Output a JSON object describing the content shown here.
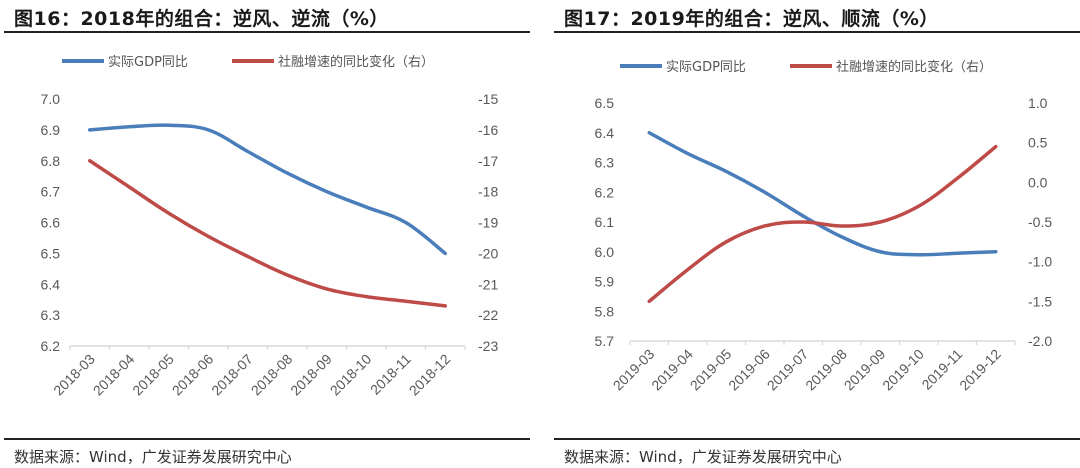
{
  "chart_data": [
    {
      "type": "line",
      "title": "图16：2018年的组合：逆风、逆流（%）",
      "source": "数据来源：Wind，广发证券发展研究中心",
      "categories": [
        "2018-03",
        "2018-04",
        "2018-05",
        "2018-06",
        "2018-07",
        "2018-08",
        "2018-09",
        "2018-10",
        "2018-11",
        "2018-12"
      ],
      "series": [
        {
          "name": "实际GDP同比",
          "axis": "left",
          "color": "#4a7ebb",
          "values": [
            6.9,
            6.91,
            6.915,
            6.9,
            6.83,
            6.76,
            6.7,
            6.65,
            6.6,
            6.5
          ]
        },
        {
          "name": "社融增速的同比变化（右）",
          "axis": "right",
          "color": "#be4b48",
          "values": [
            -17.0,
            -17.85,
            -18.7,
            -19.45,
            -20.1,
            -20.7,
            -21.15,
            -21.4,
            -21.55,
            -21.7
          ]
        }
      ],
      "yleft": {
        "min": 6.2,
        "max": 7.0,
        "ticks": [
          "7.0",
          "6.9",
          "6.8",
          "6.7",
          "6.6",
          "6.5",
          "6.4",
          "6.3",
          "6.2"
        ]
      },
      "yright": {
        "min": -23,
        "max": -15,
        "ticks": [
          "-15",
          "-16",
          "-17",
          "-18",
          "-19",
          "-20",
          "-21",
          "-22",
          "-23"
        ]
      },
      "legend": "top",
      "grid": false
    },
    {
      "type": "line",
      "title": "图17：2019年的组合：逆风、顺流（%）",
      "source": "数据来源：Wind，广发证券发展研究中心",
      "categories": [
        "2019-03",
        "2019-04",
        "2019-05",
        "2019-06",
        "2019-07",
        "2019-08",
        "2019-09",
        "2019-10",
        "2019-11",
        "2019-12"
      ],
      "series": [
        {
          "name": "实际GDP同比",
          "axis": "left",
          "color": "#4a7ebb",
          "values": [
            6.4,
            6.33,
            6.27,
            6.2,
            6.12,
            6.05,
            6.0,
            5.99,
            5.995,
            6.0
          ]
        },
        {
          "name": "社融增速的同比变化（右）",
          "axis": "right",
          "color": "#be4b48",
          "values": [
            -1.5,
            -1.1,
            -0.75,
            -0.55,
            -0.5,
            -0.55,
            -0.5,
            -0.3,
            0.05,
            0.45
          ]
        }
      ],
      "yleft": {
        "min": 5.7,
        "max": 6.5,
        "ticks": [
          "6.5",
          "6.4",
          "6.3",
          "6.2",
          "6.1",
          "6.0",
          "5.9",
          "5.8",
          "5.7"
        ]
      },
      "yright": {
        "min": -2.0,
        "max": 1.0,
        "ticks": [
          "1.0",
          "0.5",
          "0.0",
          "-0.5",
          "-1.0",
          "-1.5",
          "-2.0"
        ]
      },
      "legend": "top",
      "grid": false
    }
  ]
}
